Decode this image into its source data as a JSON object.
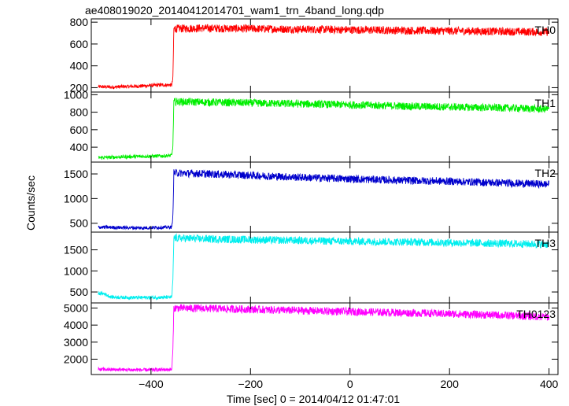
{
  "chart_data": {
    "type": "line",
    "title": "ae408019020_20140412014701_wam1_trn_4band_long.qdp",
    "xlabel": "Time [sec] 0 = 2014/04/12 01:47:01",
    "ylabel": "Counts/sec",
    "xlim": [
      -520,
      418
    ],
    "x_ticks": [
      -400,
      -200,
      0,
      200,
      400
    ],
    "x_tick_labels": [
      "−400",
      "−200",
      "0",
      "200",
      "400"
    ],
    "grid": false,
    "panels": [
      {
        "name": "TH0",
        "color": "#ff0000",
        "ylim": [
          160,
          830
        ],
        "y_ticks": [
          200,
          400,
          600,
          800
        ],
        "points": [
          [
            -506,
            210
          ],
          [
            -480,
            205
          ],
          [
            -450,
            210
          ],
          [
            -420,
            215
          ],
          [
            -380,
            225
          ],
          [
            -358,
            225
          ],
          [
            -356,
            290
          ],
          [
            -354,
            740
          ],
          [
            -300,
            745
          ],
          [
            -200,
            740
          ],
          [
            -100,
            735
          ],
          [
            0,
            730
          ],
          [
            100,
            725
          ],
          [
            200,
            720
          ],
          [
            300,
            715
          ],
          [
            400,
            710
          ]
        ]
      },
      {
        "name": "TH1",
        "color": "#00ee00",
        "ylim": [
          230,
          1030
        ],
        "y_ticks": [
          400,
          600,
          800,
          1000
        ],
        "points": [
          [
            -506,
            280
          ],
          [
            -480,
            285
          ],
          [
            -450,
            290
          ],
          [
            -420,
            295
          ],
          [
            -380,
            300
          ],
          [
            -358,
            305
          ],
          [
            -356,
            420
          ],
          [
            -354,
            920
          ],
          [
            -300,
            915
          ],
          [
            -200,
            905
          ],
          [
            -100,
            895
          ],
          [
            0,
            885
          ],
          [
            100,
            870
          ],
          [
            200,
            860
          ],
          [
            300,
            850
          ],
          [
            400,
            835
          ]
        ]
      },
      {
        "name": "TH2",
        "color": "#0000cc",
        "ylim": [
          320,
          1740
        ],
        "y_ticks": [
          500,
          1000,
          1500
        ],
        "points": [
          [
            -506,
            420
          ],
          [
            -480,
            415
          ],
          [
            -450,
            410
          ],
          [
            -420,
            405
          ],
          [
            -380,
            415
          ],
          [
            -358,
            420
          ],
          [
            -356,
            650
          ],
          [
            -354,
            1520
          ],
          [
            -300,
            1505
          ],
          [
            -200,
            1470
          ],
          [
            -100,
            1430
          ],
          [
            0,
            1400
          ],
          [
            100,
            1370
          ],
          [
            200,
            1350
          ],
          [
            300,
            1320
          ],
          [
            400,
            1290
          ]
        ]
      },
      {
        "name": "TH3",
        "color": "#00eeee",
        "ylim": [
          240,
          1920
        ],
        "y_ticks": [
          500,
          1000,
          1500
        ],
        "points": [
          [
            -506,
            470
          ],
          [
            -495,
            460
          ],
          [
            -480,
            380
          ],
          [
            -450,
            370
          ],
          [
            -420,
            365
          ],
          [
            -380,
            370
          ],
          [
            -358,
            375
          ],
          [
            -356,
            800
          ],
          [
            -354,
            1780
          ],
          [
            -300,
            1760
          ],
          [
            -200,
            1740
          ],
          [
            -100,
            1720
          ],
          [
            0,
            1700
          ],
          [
            100,
            1690
          ],
          [
            200,
            1670
          ],
          [
            300,
            1650
          ],
          [
            400,
            1630
          ]
        ]
      },
      {
        "name": "TH0123",
        "color": "#ff00ff",
        "ylim": [
          1100,
          5300
        ],
        "y_ticks": [
          2000,
          3000,
          4000,
          5000
        ],
        "points": [
          [
            -506,
            1400
          ],
          [
            -480,
            1390
          ],
          [
            -450,
            1380
          ],
          [
            -420,
            1370
          ],
          [
            -380,
            1380
          ],
          [
            -358,
            1400
          ],
          [
            -356,
            2600
          ],
          [
            -354,
            5000
          ],
          [
            -300,
            4980
          ],
          [
            -200,
            4920
          ],
          [
            -100,
            4850
          ],
          [
            0,
            4790
          ],
          [
            100,
            4730
          ],
          [
            200,
            4660
          ],
          [
            300,
            4580
          ],
          [
            400,
            4480
          ]
        ]
      }
    ]
  }
}
